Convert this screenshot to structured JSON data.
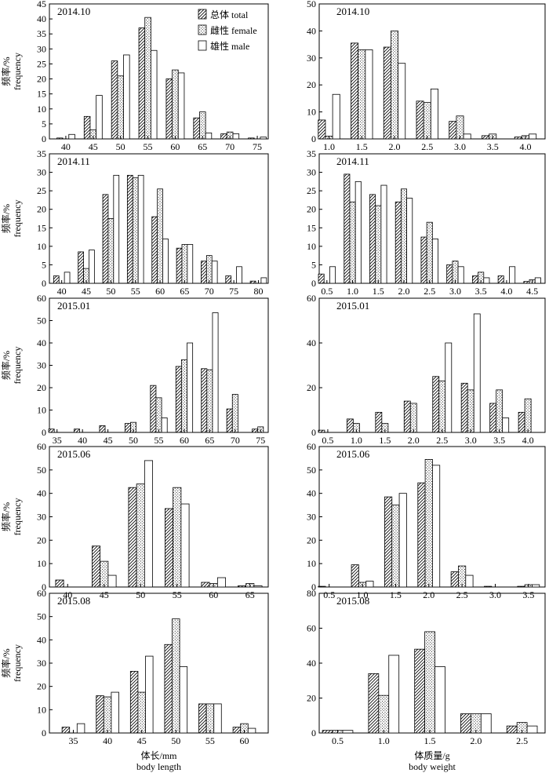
{
  "chart_data": [
    {
      "type": "bar",
      "column": "length",
      "row": 0,
      "title": "2014.10",
      "ylabel_cn": "频率/%",
      "ylabel_en": "frequency",
      "ylim": [
        0,
        45
      ],
      "yticks": [
        0,
        5,
        10,
        15,
        20,
        25,
        30,
        35,
        40,
        45
      ],
      "xlim": [
        37,
        77
      ],
      "xticks": [
        40,
        45,
        50,
        55,
        60,
        65,
        70,
        75
      ],
      "legend": [
        "总体 total",
        "雌性 female",
        "雄性 male"
      ],
      "categories": [
        40,
        45,
        50,
        55,
        60,
        65,
        70,
        75
      ],
      "series": [
        {
          "name": "总体 total",
          "values": [
            0.3,
            7.5,
            26,
            37,
            20,
            7,
            1.7,
            0.3
          ]
        },
        {
          "name": "雌性 female",
          "values": [
            0,
            3,
            21,
            40.5,
            23,
            9,
            2.3,
            0
          ]
        },
        {
          "name": "雄性 male",
          "values": [
            1.5,
            14.5,
            28,
            29.5,
            22,
            2,
            1.7,
            0.6
          ]
        }
      ]
    },
    {
      "type": "bar",
      "column": "weight",
      "row": 0,
      "title": "2014.10",
      "ylim": [
        0,
        50
      ],
      "yticks": [
        0,
        10,
        20,
        30,
        40,
        50
      ],
      "xlim": [
        0.85,
        4.3
      ],
      "xticks": [
        1.0,
        1.5,
        2.0,
        2.5,
        3.0,
        3.5,
        4.0
      ],
      "categories": [
        1.0,
        1.5,
        2.0,
        2.5,
        3.0,
        3.5,
        4.0
      ],
      "series": [
        {
          "name": "总体 total",
          "values": [
            7,
            35.5,
            34,
            14,
            6.5,
            1.2,
            0.7
          ]
        },
        {
          "name": "雌性 female",
          "values": [
            1,
            33,
            40,
            13.5,
            8.5,
            1.8,
            1.2
          ]
        },
        {
          "name": "雄性 male",
          "values": [
            16.5,
            33,
            28,
            18.5,
            1.8,
            0,
            1.8
          ]
        }
      ]
    },
    {
      "type": "bar",
      "column": "length",
      "row": 1,
      "title": "2014.11",
      "ylabel_cn": "频率/%",
      "ylabel_en": "frequency",
      "ylim": [
        0,
        35
      ],
      "yticks": [
        0,
        5,
        10,
        15,
        20,
        25,
        30,
        35
      ],
      "xlim": [
        37.5,
        82
      ],
      "xticks": [
        40,
        45,
        50,
        55,
        60,
        65,
        70,
        75,
        80
      ],
      "categories": [
        40,
        45,
        50,
        55,
        60,
        65,
        70,
        75,
        80
      ],
      "series": [
        {
          "name": "总体 total",
          "values": [
            2,
            8.5,
            24,
            29.2,
            18,
            9.5,
            6,
            2,
            0.6
          ]
        },
        {
          "name": "雌性 female",
          "values": [
            0,
            4,
            17.5,
            28.5,
            25.5,
            10.5,
            7.5,
            0,
            0
          ]
        },
        {
          "name": "雄性 male",
          "values": [
            3,
            9,
            29.2,
            29.2,
            12,
            10.5,
            6,
            4.5,
            1.5
          ]
        }
      ]
    },
    {
      "type": "bar",
      "column": "weight",
      "row": 1,
      "title": "2014.11",
      "ylim": [
        0,
        35
      ],
      "yticks": [
        0,
        5,
        10,
        15,
        20,
        25,
        30,
        35
      ],
      "xlim": [
        0.35,
        4.75
      ],
      "xticks": [
        0.5,
        1.0,
        1.5,
        2.0,
        2.5,
        3.0,
        3.5,
        4.0,
        4.5
      ],
      "categories": [
        0.5,
        1.0,
        1.5,
        2.0,
        2.5,
        3.0,
        3.5,
        4.0,
        4.5
      ],
      "series": [
        {
          "name": "总体 total",
          "values": [
            2.5,
            29.5,
            24,
            22,
            12.5,
            5,
            2,
            2,
            0.5
          ]
        },
        {
          "name": "雌性 female",
          "values": [
            0,
            22,
            21,
            25.5,
            16.5,
            6,
            3,
            0,
            1
          ]
        },
        {
          "name": "雄性 male",
          "values": [
            4.5,
            27.5,
            26.5,
            23,
            12,
            4.5,
            1.5,
            4.5,
            1.5
          ]
        }
      ]
    },
    {
      "type": "bar",
      "column": "length",
      "row": 2,
      "title": "2015.01",
      "ylabel_cn": "频率/%",
      "ylabel_en": "frequency",
      "ylim": [
        0,
        60
      ],
      "yticks": [
        0,
        10,
        20,
        30,
        40,
        50,
        60
      ],
      "xlim": [
        33.5,
        76.5
      ],
      "xticks": [
        35,
        40,
        45,
        50,
        55,
        60,
        65,
        70,
        75
      ],
      "categories": [
        35,
        40,
        45,
        50,
        55,
        60,
        65,
        70,
        75
      ],
      "series": [
        {
          "name": "总体 total",
          "values": [
            1.5,
            1.5,
            3,
            4,
            21,
            29.5,
            28.5,
            10.5,
            1.5
          ]
        },
        {
          "name": "雌性 female",
          "values": [
            0,
            0,
            0,
            4.5,
            15.5,
            32.5,
            28,
            17,
            2.5
          ]
        },
        {
          "name": "雄性 male",
          "values": [
            0,
            0,
            0,
            0,
            6.5,
            40,
            53.5,
            0,
            0
          ]
        }
      ]
    },
    {
      "type": "bar",
      "column": "weight",
      "row": 2,
      "title": "2015.01",
      "ylim": [
        0,
        60
      ],
      "yticks": [
        0,
        20,
        40,
        60
      ],
      "xlim": [
        0.35,
        4.3
      ],
      "xticks": [
        0.5,
        1.0,
        1.5,
        2.0,
        2.5,
        3.0,
        3.5,
        4.0
      ],
      "categories": [
        0.5,
        1.0,
        1.5,
        2.0,
        2.5,
        3.0,
        3.5,
        4.0
      ],
      "series": [
        {
          "name": "总体 total",
          "values": [
            1,
            6,
            9,
            14,
            25,
            22,
            13,
            9
          ]
        },
        {
          "name": "雌性 female",
          "values": [
            0,
            4,
            4,
            13,
            23,
            19,
            19,
            15
          ]
        },
        {
          "name": "雄性 male",
          "values": [
            0,
            0,
            0,
            0,
            40,
            53,
            6.5,
            0
          ]
        }
      ]
    },
    {
      "type": "bar",
      "column": "length",
      "row": 3,
      "title": "2015.06",
      "ylabel_cn": "频率/%",
      "ylabel_en": "frequency",
      "ylim": [
        0,
        60
      ],
      "yticks": [
        0,
        10,
        20,
        30,
        40,
        50,
        60
      ],
      "xlim": [
        37.5,
        67.5
      ],
      "xticks": [
        40,
        45,
        50,
        55,
        60,
        65
      ],
      "categories": [
        40,
        45,
        50,
        55,
        60,
        65
      ],
      "series": [
        {
          "name": "总体 total",
          "values": [
            3,
            17.5,
            42.5,
            33.5,
            2,
            0.5
          ]
        },
        {
          "name": "雌性 female",
          "values": [
            0,
            11,
            44,
            42.5,
            1.5,
            1.5
          ]
        },
        {
          "name": "雄性 male",
          "values": [
            0,
            5,
            54,
            35.5,
            4,
            0.5
          ]
        }
      ]
    },
    {
      "type": "bar",
      "column": "weight",
      "row": 3,
      "title": "2015.06",
      "ylim": [
        0,
        60
      ],
      "yticks": [
        0,
        10,
        20,
        30,
        40,
        50,
        60
      ],
      "xlim": [
        0.35,
        3.75
      ],
      "xticks": [
        0.5,
        1.0,
        1.5,
        2.0,
        2.5,
        3.0,
        3.5
      ],
      "categories": [
        0.5,
        1.0,
        1.5,
        2.0,
        2.5,
        3.0,
        3.5
      ],
      "series": [
        {
          "name": "总体 total",
          "values": [
            0.3,
            9.5,
            38.5,
            44.5,
            6.5,
            0.3,
            0.3
          ]
        },
        {
          "name": "雌性 female",
          "values": [
            0,
            2,
            35,
            54.5,
            9,
            0,
            1
          ]
        },
        {
          "name": "雄性 male",
          "values": [
            0,
            2.5,
            40,
            52,
            5,
            0,
            1
          ]
        }
      ]
    },
    {
      "type": "bar",
      "column": "length",
      "row": 4,
      "title": "2015.08",
      "ylabel_cn": "频率/%",
      "ylabel_en": "frequency",
      "ylim": [
        0,
        60
      ],
      "yticks": [
        0,
        10,
        20,
        30,
        40,
        50,
        60
      ],
      "xlim": [
        31.5,
        63.5
      ],
      "xticks": [
        35,
        40,
        45,
        50,
        55,
        60
      ],
      "xlabel_cn": "体长/mm",
      "xlabel_en": "body length",
      "categories": [
        35,
        40,
        45,
        50,
        55,
        60
      ],
      "series": [
        {
          "name": "总体 total",
          "values": [
            2.5,
            16,
            26.5,
            38,
            12.5,
            2.5
          ]
        },
        {
          "name": "雌性 female",
          "values": [
            0,
            15.5,
            17.5,
            49,
            12.5,
            4
          ]
        },
        {
          "name": "雄性 male",
          "values": [
            4,
            17.5,
            33,
            28.5,
            12.5,
            2
          ]
        }
      ]
    },
    {
      "type": "bar",
      "column": "weight",
      "row": 4,
      "title": "2015.08",
      "ylim": [
        0,
        80
      ],
      "yticks": [
        0,
        20,
        40,
        60,
        80
      ],
      "xlim": [
        0.3,
        2.75
      ],
      "xticks": [
        0.5,
        1.0,
        1.5,
        2.0,
        2.5
      ],
      "xlabel_cn": "体质量/g",
      "xlabel_en": "body weight",
      "categories": [
        0.5,
        1.0,
        1.5,
        2.0,
        2.5
      ],
      "series": [
        {
          "name": "总体 total",
          "values": [
            1.5,
            34,
            48,
            11,
            4
          ]
        },
        {
          "name": "雌性 female",
          "values": [
            1.5,
            21.5,
            58,
            11,
            6
          ]
        },
        {
          "name": "雄性 male",
          "values": [
            1.5,
            44.5,
            38,
            11,
            4
          ]
        }
      ]
    }
  ]
}
